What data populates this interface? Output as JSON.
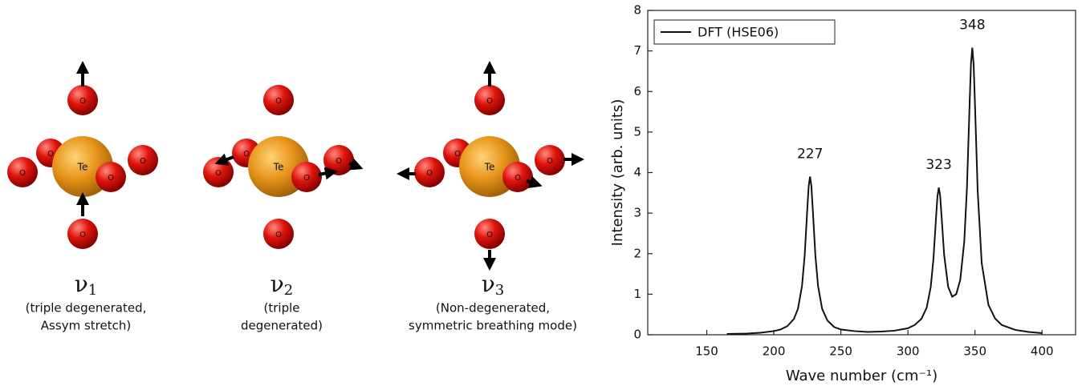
{
  "molecules": {
    "atom_labels": {
      "center": "Te",
      "ligand": "O"
    },
    "modes": [
      {
        "symbol": "ν",
        "subscript": "1",
        "description": [
          "(triple degenerated,",
          "Assym stretch)"
        ]
      },
      {
        "symbol": "ν",
        "subscript": "2",
        "description": [
          "(triple",
          "degenerated)"
        ]
      },
      {
        "symbol": "ν",
        "subscript": "3",
        "description": [
          "(Non-degenerated,",
          "symmetric breathing mode)"
        ]
      }
    ]
  },
  "chart_data": {
    "type": "line",
    "x_label": "Wave number (cm⁻¹)",
    "y_label": "Intensity (arb. units)",
    "x": [
      165,
      180,
      190,
      200,
      205,
      210,
      215,
      218,
      221,
      223,
      225,
      226,
      227,
      228,
      229,
      231,
      233,
      236,
      240,
      245,
      250,
      260,
      270,
      280,
      290,
      300,
      305,
      310,
      314,
      317,
      319,
      321,
      322,
      323,
      324,
      325,
      327,
      330,
      333,
      336,
      339,
      342,
      344,
      346,
      347,
      348,
      349,
      350,
      352,
      355,
      360,
      365,
      370,
      380,
      390,
      400
    ],
    "series": [
      {
        "name": "DFT (HSE06)",
        "color": "#111111",
        "values": [
          0.02,
          0.03,
          0.05,
          0.09,
          0.13,
          0.21,
          0.39,
          0.64,
          1.2,
          1.95,
          3.12,
          3.67,
          3.9,
          3.67,
          3.12,
          1.95,
          1.2,
          0.64,
          0.35,
          0.19,
          0.13,
          0.09,
          0.07,
          0.08,
          0.1,
          0.16,
          0.24,
          0.39,
          0.67,
          1.18,
          1.86,
          2.91,
          3.41,
          3.63,
          3.44,
          2.96,
          1.97,
          1.18,
          0.94,
          1.0,
          1.35,
          2.3,
          3.62,
          5.7,
          6.68,
          7.08,
          6.66,
          5.67,
          3.55,
          1.77,
          0.74,
          0.4,
          0.24,
          0.12,
          0.07,
          0.04
        ]
      }
    ],
    "annotations": [
      "227",
      "323",
      "348"
    ],
    "xlim": [
      106,
      425
    ],
    "xticks": [
      150,
      200,
      250,
      300,
      350,
      400
    ],
    "ylim": [
      0,
      8
    ],
    "yticks": [
      0,
      1,
      2,
      3,
      4,
      5,
      6,
      7,
      8
    ],
    "legend": "upper left"
  }
}
